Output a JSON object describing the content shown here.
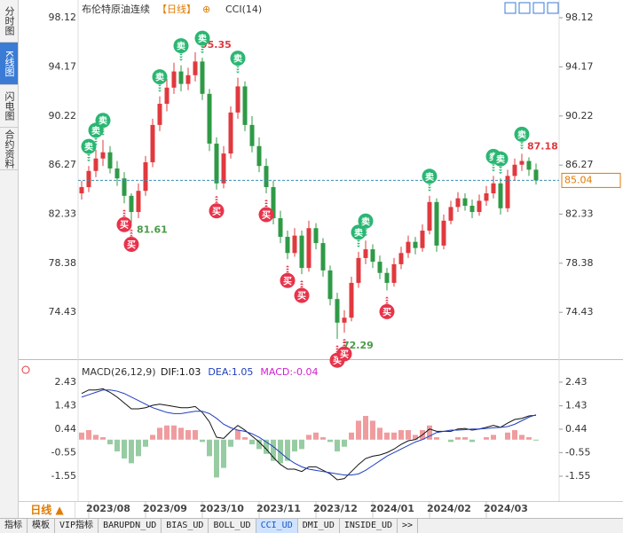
{
  "chart_data": {
    "type": "candlestick",
    "title": "布伦特原油连续",
    "period": "【日线】",
    "indicator": "CCI(14)",
    "up_color": "#e0393e",
    "down_color": "#2f9a46",
    "ylim": [
      71.02,
      99.19
    ],
    "yticks": [
      98.12,
      94.17,
      90.22,
      86.27,
      82.33,
      78.38,
      74.43
    ],
    "candles": [
      [
        84.0,
        85.0,
        83.5,
        84.5
      ],
      [
        84.5,
        86.2,
        84.1,
        85.8
      ],
      [
        85.8,
        87.5,
        85.3,
        86.8
      ],
      [
        86.8,
        88.3,
        86.2,
        87.3
      ],
      [
        87.3,
        87.8,
        85.6,
        86.0
      ],
      [
        86.0,
        86.6,
        84.6,
        85.2
      ],
      [
        85.2,
        85.7,
        83.2,
        83.8
      ],
      [
        83.8,
        84.0,
        81.61,
        82.5
      ],
      [
        82.5,
        84.8,
        82.0,
        84.2
      ],
      [
        84.2,
        87.0,
        83.8,
        86.5
      ],
      [
        86.5,
        90.0,
        86.1,
        89.5
      ],
      [
        89.5,
        91.8,
        89.0,
        91.2
      ],
      [
        91.2,
        93.2,
        90.6,
        92.5
      ],
      [
        92.5,
        94.5,
        92.0,
        93.8
      ],
      [
        93.8,
        94.3,
        92.2,
        92.8
      ],
      [
        92.8,
        94.1,
        92.3,
        93.5
      ],
      [
        93.5,
        95.35,
        93.0,
        94.6
      ],
      [
        94.6,
        94.9,
        91.5,
        92.0
      ],
      [
        92.0,
        92.4,
        87.4,
        88.0
      ],
      [
        88.0,
        88.5,
        84.3,
        84.8
      ],
      [
        84.8,
        87.8,
        84.4,
        87.2
      ],
      [
        87.2,
        91.0,
        86.8,
        90.5
      ],
      [
        90.5,
        93.3,
        90.0,
        92.6
      ],
      [
        92.6,
        93.0,
        89.0,
        89.5
      ],
      [
        89.5,
        90.2,
        87.3,
        87.8
      ],
      [
        87.8,
        88.5,
        85.7,
        86.2
      ],
      [
        86.2,
        86.8,
        84.0,
        84.5
      ],
      [
        84.5,
        85.0,
        81.5,
        82.0
      ],
      [
        82.0,
        82.6,
        80.0,
        80.5
      ],
      [
        80.5,
        81.0,
        78.7,
        79.2
      ],
      [
        79.2,
        81.2,
        78.9,
        80.6
      ],
      [
        80.6,
        81.0,
        77.5,
        78.0
      ],
      [
        78.0,
        81.8,
        77.7,
        81.2
      ],
      [
        81.2,
        81.6,
        79.5,
        80.0
      ],
      [
        80.0,
        80.4,
        77.3,
        77.8
      ],
      [
        77.8,
        78.2,
        75.0,
        75.5
      ],
      [
        75.5,
        76.0,
        72.29,
        73.6
      ],
      [
        73.6,
        74.6,
        72.8,
        74.0
      ],
      [
        74.0,
        77.3,
        73.7,
        76.8
      ],
      [
        76.8,
        79.3,
        76.4,
        78.8
      ],
      [
        78.8,
        80.2,
        78.3,
        79.5
      ],
      [
        79.5,
        79.9,
        78.0,
        78.5
      ],
      [
        78.5,
        79.0,
        77.1,
        77.6
      ],
      [
        77.6,
        78.0,
        76.2,
        76.8
      ],
      [
        76.8,
        78.8,
        76.5,
        78.3
      ],
      [
        78.3,
        79.7,
        77.9,
        79.2
      ],
      [
        79.2,
        80.6,
        78.8,
        80.1
      ],
      [
        80.1,
        80.5,
        79.1,
        79.6
      ],
      [
        79.6,
        81.5,
        79.3,
        81.0
      ],
      [
        81.0,
        83.8,
        80.7,
        83.3
      ],
      [
        83.3,
        83.6,
        79.3,
        79.8
      ],
      [
        79.8,
        82.3,
        79.5,
        81.8
      ],
      [
        81.8,
        83.4,
        81.5,
        82.9
      ],
      [
        82.9,
        84.1,
        82.5,
        83.6
      ],
      [
        83.6,
        84.0,
        82.6,
        83.0
      ],
      [
        83.0,
        83.5,
        82.0,
        82.5
      ],
      [
        82.5,
        83.9,
        82.2,
        83.4
      ],
      [
        83.4,
        84.6,
        83.0,
        84.0
      ],
      [
        84.0,
        85.4,
        83.6,
        84.8
      ],
      [
        84.8,
        85.2,
        82.3,
        82.8
      ],
      [
        82.8,
        85.9,
        82.5,
        85.4
      ],
      [
        85.4,
        86.8,
        85.0,
        86.3
      ],
      [
        86.3,
        87.18,
        85.8,
        86.6
      ],
      [
        86.6,
        86.9,
        85.4,
        85.9
      ],
      [
        85.9,
        86.4,
        84.7,
        85.04
      ]
    ],
    "extremes": [
      {
        "candle": 16,
        "field": 1,
        "color": "#e0393e"
      },
      {
        "candle": 7,
        "field": 2,
        "color": "#4a9a4a"
      },
      {
        "candle": 36,
        "field": 2,
        "color": "#4a9a4a"
      },
      {
        "candle": 62,
        "field": 1,
        "color": "#e0393e"
      }
    ],
    "signals": [
      {
        "index": 1,
        "label": "卖"
      },
      {
        "index": 2,
        "label": "卖"
      },
      {
        "index": 3,
        "label": "卖"
      },
      {
        "index": 11,
        "label": "卖"
      },
      {
        "index": 14,
        "label": "卖"
      },
      {
        "index": 17,
        "label": "卖"
      },
      {
        "index": 22,
        "label": "卖"
      },
      {
        "index": 39,
        "label": "卖"
      },
      {
        "index": 40,
        "label": "卖"
      },
      {
        "index": 49,
        "label": "卖"
      },
      {
        "index": 58,
        "label": "卖"
      },
      {
        "index": 59,
        "label": "卖"
      },
      {
        "index": 62,
        "label": "卖"
      },
      {
        "index": 6,
        "label": "买"
      },
      {
        "index": 7,
        "label": "买"
      },
      {
        "index": 19,
        "label": "买"
      },
      {
        "index": 26,
        "label": "买"
      },
      {
        "index": 29,
        "label": "买"
      },
      {
        "index": 31,
        "label": "买"
      },
      {
        "index": 36,
        "label": "买"
      },
      {
        "index": 37,
        "label": "买"
      },
      {
        "index": 43,
        "label": "买"
      }
    ],
    "xlabels": [
      {
        "index": 1,
        "label": "2023/08"
      },
      {
        "index": 9,
        "label": "2023/09"
      },
      {
        "index": 17,
        "label": "2023/10"
      },
      {
        "index": 25,
        "label": "2023/11"
      },
      {
        "index": 33,
        "label": "2023/12"
      },
      {
        "index": 41,
        "label": "2024/01"
      },
      {
        "index": 49,
        "label": "2024/02"
      },
      {
        "index": 57,
        "label": "2024/03"
      }
    ],
    "macd": {
      "title": "MACD(26,12,9)",
      "dif_label": "DIF:",
      "dea_label": "DEA:",
      "macd_label": "MACD:",
      "dif_color": "#111111",
      "dea_color": "#1f3fbf",
      "macd_color": "#d020d0",
      "y2lim": [
        -2.6,
        3.14
      ],
      "y2ticks": [
        2.43,
        1.43,
        0.44,
        -0.55,
        -1.55
      ],
      "hist": [
        0.3,
        0.4,
        0.2,
        0.1,
        -0.2,
        -0.5,
        -0.8,
        -1.0,
        -0.7,
        -0.3,
        0.2,
        0.5,
        0.6,
        0.6,
        0.5,
        0.4,
        0.4,
        -0.1,
        -0.7,
        -1.6,
        -1.2,
        -0.3,
        0.4,
        0.1,
        -0.2,
        -0.4,
        -0.6,
        -0.9,
        -1.0,
        -0.9,
        -0.5,
        -0.4,
        0.2,
        0.3,
        0.1,
        -0.1,
        -0.5,
        -0.3,
        0.3,
        0.8,
        1.0,
        0.8,
        0.5,
        0.3,
        0.3,
        0.4,
        0.4,
        0.2,
        0.4,
        0.6,
        0.1,
        0.0,
        -0.1,
        0.1,
        0.1,
        -0.1,
        0.0,
        0.1,
        0.2,
        0.0,
        0.3,
        0.4,
        0.2,
        0.1,
        -0.04
      ],
      "dif": [
        1.95,
        2.1,
        2.1,
        2.15,
        2.0,
        1.8,
        1.55,
        1.3,
        1.3,
        1.35,
        1.45,
        1.5,
        1.45,
        1.4,
        1.35,
        1.35,
        1.4,
        1.15,
        0.75,
        0.1,
        0.05,
        0.35,
        0.6,
        0.4,
        0.15,
        -0.1,
        -0.4,
        -0.75,
        -1.05,
        -1.25,
        -1.25,
        -1.35,
        -1.15,
        -1.15,
        -1.3,
        -1.45,
        -1.7,
        -1.65,
        -1.35,
        -1.05,
        -0.8,
        -0.7,
        -0.65,
        -0.55,
        -0.4,
        -0.2,
        -0.05,
        0.0,
        0.2,
        0.45,
        0.35,
        0.35,
        0.35,
        0.45,
        0.47,
        0.4,
        0.45,
        0.52,
        0.6,
        0.52,
        0.7,
        0.85,
        0.9,
        1.0,
        1.03
      ],
      "dea": [
        1.8,
        1.9,
        2.0,
        2.1,
        2.1,
        2.05,
        1.95,
        1.8,
        1.65,
        1.5,
        1.35,
        1.25,
        1.15,
        1.1,
        1.1,
        1.15,
        1.2,
        1.2,
        1.1,
        0.9,
        0.65,
        0.5,
        0.4,
        0.35,
        0.25,
        0.1,
        -0.1,
        -0.3,
        -0.55,
        -0.8,
        -1.0,
        -1.15,
        -1.25,
        -1.3,
        -1.35,
        -1.4,
        -1.45,
        -1.5,
        -1.5,
        -1.45,
        -1.3,
        -1.1,
        -0.9,
        -0.7,
        -0.55,
        -0.4,
        -0.25,
        -0.1,
        0.0,
        0.15,
        0.3,
        0.35,
        0.4,
        0.4,
        0.42,
        0.45,
        0.45,
        0.47,
        0.5,
        0.52,
        0.55,
        0.65,
        0.8,
        0.95,
        1.05
      ]
    }
  },
  "ui": {
    "sidebar": [
      "分时图",
      "K线图",
      "闪电图",
      "合约资料"
    ],
    "sidebar_selected": 1,
    "period_button": "日线 ▲",
    "tabs": [
      "指标",
      "模板",
      "VIP指标",
      "BARUPDN_UD",
      "BIAS_UD",
      "BOLL_UD",
      "CCI_UD",
      "DMI_UD",
      "INSIDE_UD",
      ">>"
    ],
    "tab_selected": 6
  }
}
